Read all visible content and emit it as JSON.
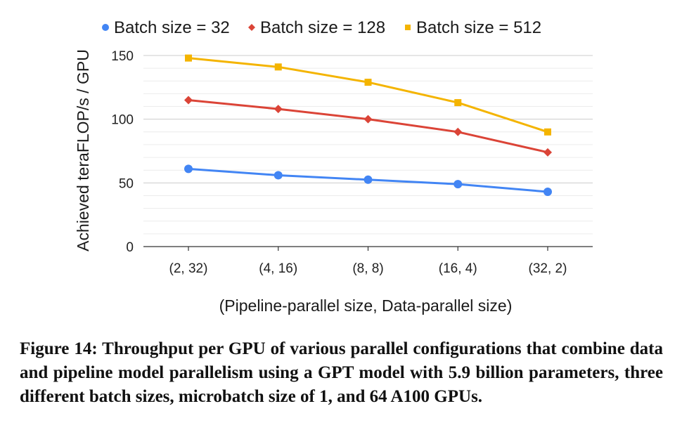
{
  "chart_data": {
    "type": "line",
    "title": "",
    "xlabel": "(Pipeline-parallel size, Data-parallel size)",
    "ylabel": "Achieved teraFLOP/s / GPU",
    "categories": [
      "(2, 32)",
      "(4, 16)",
      "(8, 8)",
      "(16, 4)",
      "(32, 2)"
    ],
    "ylim": [
      0,
      150
    ],
    "yticks": [
      0,
      50,
      100,
      150
    ],
    "grid": true,
    "legend_position": "top",
    "series": [
      {
        "name": "Batch size = 32",
        "color": "#4285f4",
        "marker": "circle",
        "values": [
          61,
          56,
          52.5,
          49,
          43
        ]
      },
      {
        "name": "Batch size = 128",
        "color": "#db4437",
        "marker": "diamond",
        "values": [
          115,
          108,
          100,
          90,
          74
        ]
      },
      {
        "name": "Batch size = 512",
        "color": "#f4b400",
        "marker": "square",
        "values": [
          148,
          141,
          129,
          113,
          90
        ]
      }
    ]
  },
  "caption": "Figure 14: Throughput per GPU of various parallel configurations that combine data and pipeline model parallelism using a GPT model with 5.9 billion parameters, three different batch sizes, microbatch size of 1, and 64 A100 GPUs."
}
